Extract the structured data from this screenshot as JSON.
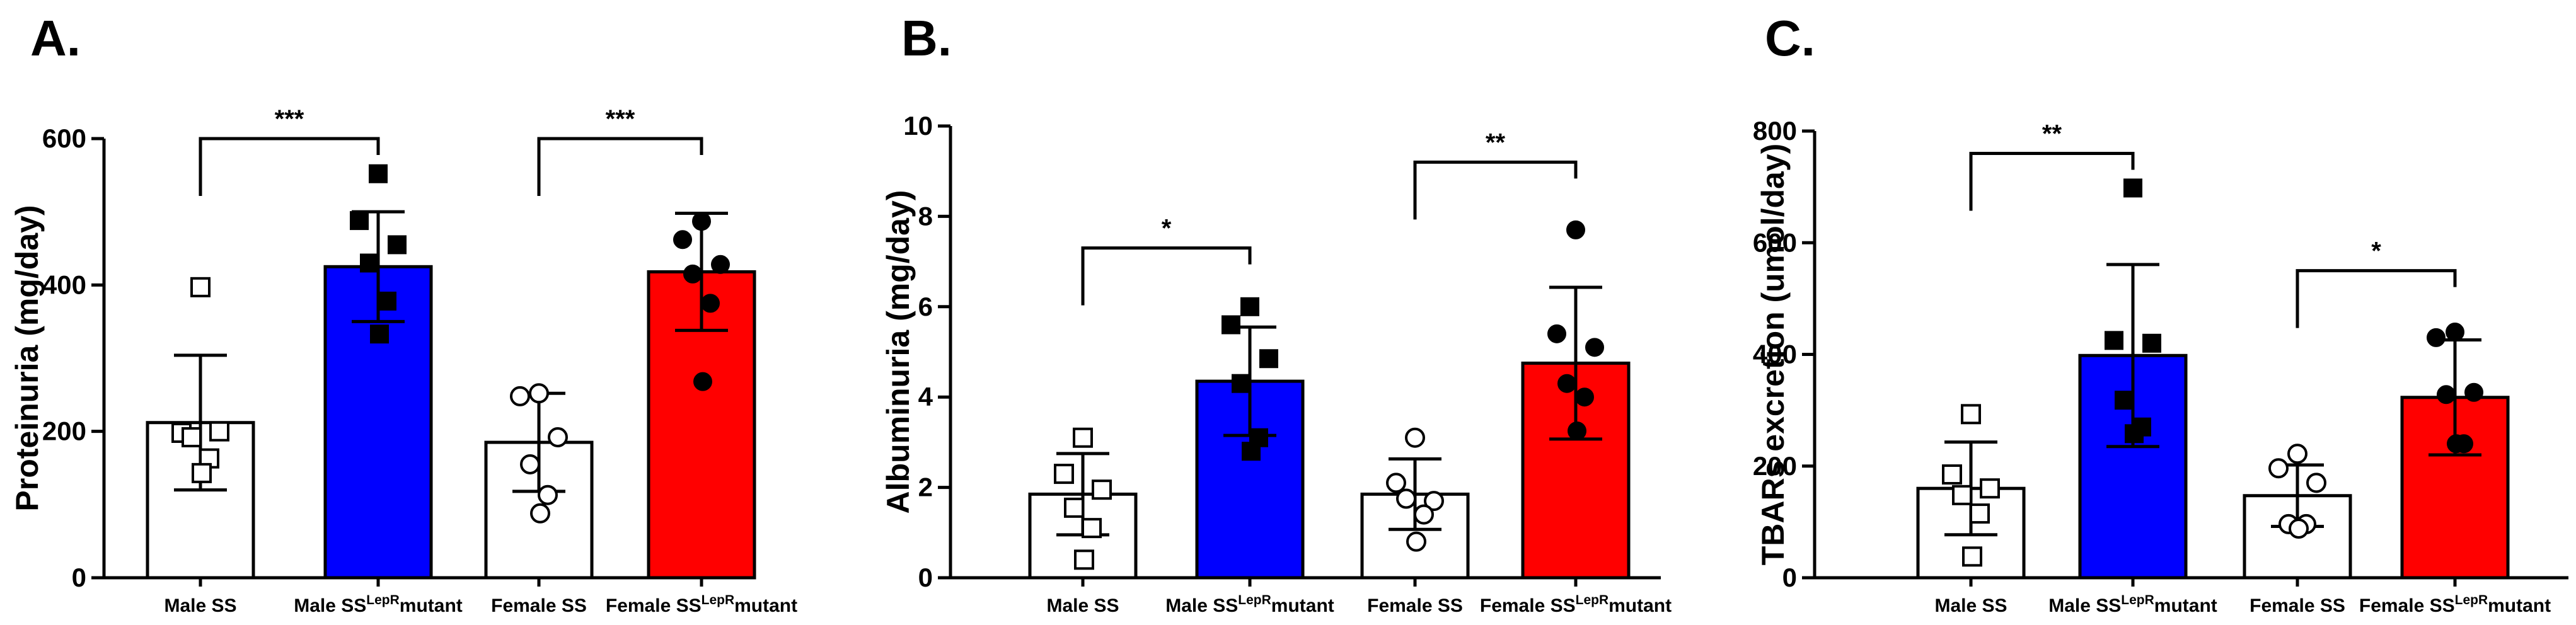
{
  "chart_data": [
    {
      "type": "bar",
      "panel_label": "A.",
      "ylabel": "Proteinuria (mg/day)",
      "ylim": [
        0,
        600
      ],
      "yticks": [
        "0",
        "200",
        "400",
        "600"
      ],
      "categories": [
        {
          "base": "Male SS",
          "sup": "",
          "suffix": ""
        },
        {
          "base": "Male SS",
          "sup": "LepR",
          "suffix": "mutant"
        },
        {
          "base": "Female SS",
          "sup": "",
          "suffix": ""
        },
        {
          "base": "Female SS",
          "sup": "LepR",
          "suffix": "mutant"
        }
      ],
      "means": [
        212,
        425,
        185,
        418
      ],
      "sd": [
        92,
        75,
        67,
        80
      ],
      "bar_colors": [
        "#ffffff",
        "#0000ff",
        "#ffffff",
        "#ff0000"
      ],
      "marker_shapes": [
        "square-open",
        "square-filled",
        "circle-open",
        "circle-filled"
      ],
      "points": [
        [
          397,
          198,
          200,
          192,
          163,
          143
        ],
        [
          552,
          488,
          455,
          430,
          378,
          333
        ],
        [
          252,
          248,
          192,
          155,
          113,
          88
        ],
        [
          487,
          462,
          428,
          415,
          375,
          268
        ]
      ],
      "comparisons": [
        {
          "from": 0,
          "to": 1,
          "y": 600,
          "label": "***"
        },
        {
          "from": 2,
          "to": 3,
          "y": 600,
          "label": "***"
        }
      ]
    },
    {
      "type": "bar",
      "panel_label": "B.",
      "ylabel": "Albuminuria (mg/day)",
      "ylim": [
        0,
        10
      ],
      "yticks": [
        "0",
        "2",
        "4",
        "6",
        "8",
        "10"
      ],
      "categories": [
        {
          "base": "Male SS",
          "sup": "",
          "suffix": ""
        },
        {
          "base": "Male SS",
          "sup": "LepR",
          "suffix": "mutant"
        },
        {
          "base": "Female SS",
          "sup": "",
          "suffix": ""
        },
        {
          "base": "Female SS",
          "sup": "LepR",
          "suffix": "mutant"
        }
      ],
      "means": [
        1.85,
        4.35,
        1.85,
        4.75
      ],
      "sd": [
        0.9,
        1.2,
        0.78,
        1.68
      ],
      "bar_colors": [
        "#ffffff",
        "#0000ff",
        "#ffffff",
        "#ff0000"
      ],
      "marker_shapes": [
        "square-open",
        "square-filled",
        "circle-open",
        "circle-filled"
      ],
      "points": [
        [
          3.1,
          2.3,
          1.95,
          1.55,
          1.1,
          0.4
        ],
        [
          6.0,
          5.6,
          4.85,
          4.3,
          3.1,
          2.8
        ],
        [
          3.1,
          2.1,
          1.7,
          1.75,
          1.4,
          0.8
        ],
        [
          7.7,
          5.4,
          5.1,
          4.3,
          4.0,
          3.25
        ]
      ],
      "comparisons": [
        {
          "from": 0,
          "to": 1,
          "y": 7.3,
          "label": "*"
        },
        {
          "from": 2,
          "to": 3,
          "y": 9.2,
          "label": "**"
        }
      ]
    },
    {
      "type": "bar",
      "panel_label": "C.",
      "ylabel": "TBARs excretion (umol/day)",
      "ylim": [
        0,
        800
      ],
      "yticks": [
        "0",
        "200",
        "400",
        "600",
        "800"
      ],
      "categories": [
        {
          "base": "Male SS",
          "sup": "",
          "suffix": ""
        },
        {
          "base": "Male SS",
          "sup": "LepR",
          "suffix": "mutant"
        },
        {
          "base": "Female SS",
          "sup": "",
          "suffix": ""
        },
        {
          "base": "Female SS",
          "sup": "LepR",
          "suffix": "mutant"
        }
      ],
      "means": [
        160,
        398,
        147,
        323
      ],
      "sd": [
        83,
        163,
        55,
        103
      ],
      "bar_colors": [
        "#ffffff",
        "#0000ff",
        "#ffffff",
        "#ff0000"
      ],
      "marker_shapes": [
        "square-open",
        "square-filled",
        "circle-open",
        "circle-filled"
      ],
      "points": [
        [
          293,
          185,
          160,
          148,
          115,
          38
        ],
        [
          698,
          425,
          420,
          318,
          270,
          258
        ],
        [
          222,
          196,
          170,
          96,
          96,
          88
        ],
        [
          440,
          430,
          332,
          328,
          240,
          240
        ]
      ],
      "comparisons": [
        {
          "from": 0,
          "to": 1,
          "y": 760,
          "label": "**"
        },
        {
          "from": 2,
          "to": 3,
          "y": 550,
          "label": "*"
        }
      ]
    }
  ]
}
